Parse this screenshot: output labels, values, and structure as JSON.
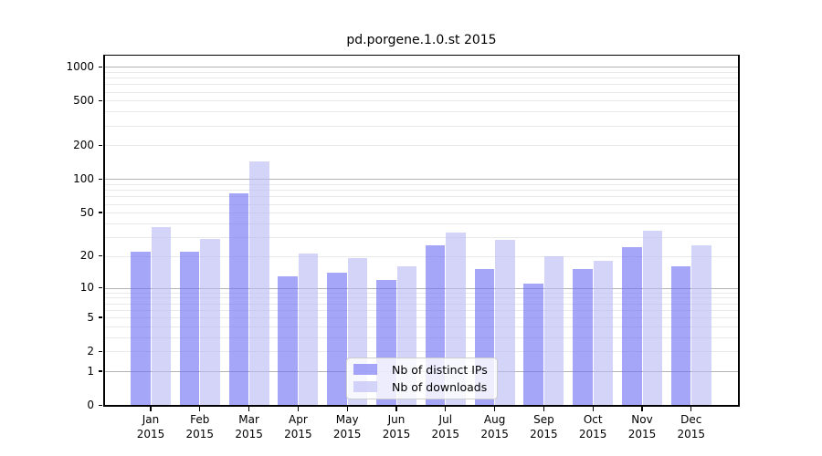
{
  "title": "pd.porgene.1.0.st 2015",
  "legend": {
    "items": [
      {
        "label": "Nb of distinct IPs",
        "color": "rgba(112,112,243,0.62)"
      },
      {
        "label": "Nb of downloads",
        "color": "rgba(186,186,246,0.62)"
      }
    ]
  },
  "chart_data": {
    "type": "bar",
    "title": "pd.porgene.1.0.st 2015",
    "x_categories": [
      "Jan",
      "Feb",
      "Mar",
      "Apr",
      "May",
      "Jun",
      "Jul",
      "Aug",
      "Sep",
      "Oct",
      "Nov",
      "Dec"
    ],
    "x_year": "2015",
    "series": [
      {
        "name": "Nb of distinct IPs",
        "color": "rgba(112,112,243,0.62)",
        "values": [
          22,
          22,
          75,
          13,
          14,
          12,
          25,
          15,
          11,
          15,
          24,
          16
        ]
      },
      {
        "name": "Nb of downloads",
        "color": "rgba(186,186,246,0.62)",
        "values": [
          37,
          29,
          145,
          21,
          19,
          16,
          33,
          28,
          20,
          18,
          34,
          25
        ]
      }
    ],
    "yscale": "log1p",
    "ylim": [
      0,
      1258
    ],
    "yticks": [
      0,
      1,
      2,
      5,
      10,
      20,
      50,
      100,
      200,
      500,
      1000
    ],
    "major_gridlines": [
      1,
      10,
      100,
      1000
    ],
    "grid": true,
    "legend_position": "lower-center"
  }
}
